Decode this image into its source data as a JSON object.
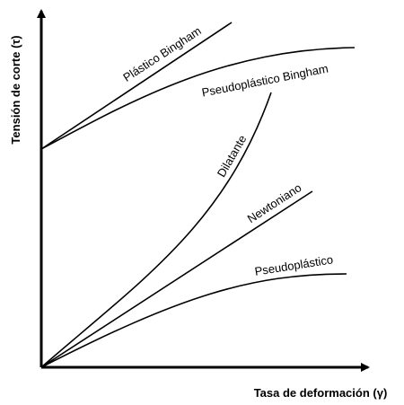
{
  "axes": {
    "y_label": "Tensión de corte (τ)",
    "x_label": "Tasa de deformación (γ)"
  },
  "curves": [
    {
      "label": "Plástico Bingham"
    },
    {
      "label": "Pseudoplástico Bingham"
    },
    {
      "label": "Dilatante"
    },
    {
      "label": "Newtoniano"
    },
    {
      "label": "Pseudoplástico"
    }
  ]
}
